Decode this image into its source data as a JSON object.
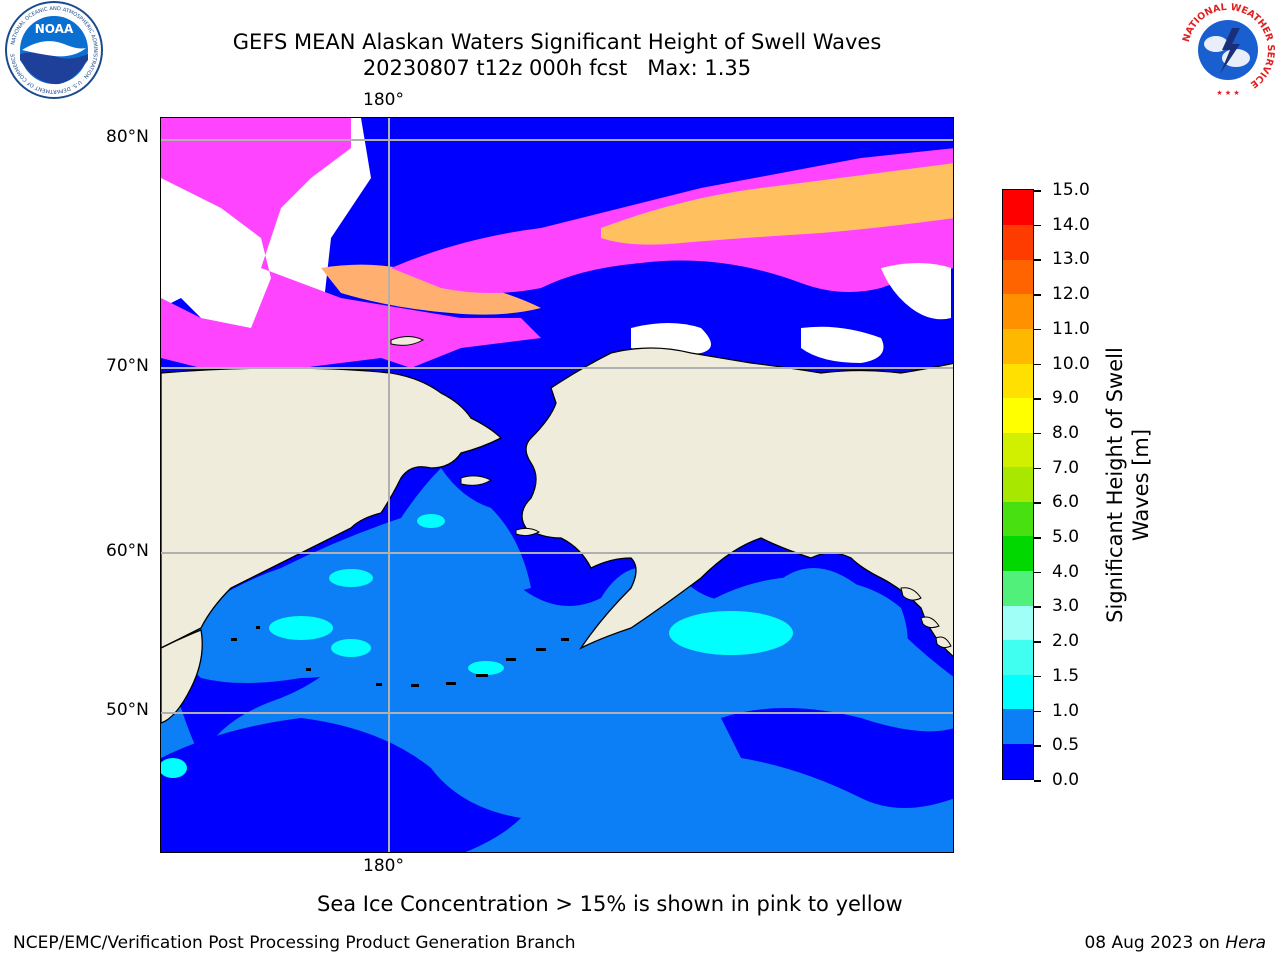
{
  "header": {
    "title_line1": "GEFS MEAN Alaskan Waters Significant Height of Swell Waves",
    "title_line2": "20230807 t12z 000h fcst   Max: 1.35"
  },
  "logos": {
    "noaa_text": "NOAA",
    "noaa_ring_text": "NATIONAL OCEANIC AND ATMOSPHERIC ADMINISTRATION · U.S. DEPARTMENT OF COMMERCE",
    "nws_ring_text": "NATIONAL WEATHER SERVICE"
  },
  "map": {
    "lon_label_top": "180°",
    "lon_label_bottom": "180°",
    "lat_labels": [
      "80°N",
      "70°N",
      "60°N",
      "50°N"
    ]
  },
  "colorbar": {
    "title_line1": "Significant Height of Swell",
    "title_line2": "Waves [m]",
    "tick_labels": [
      "15.0",
      "14.0",
      "13.0",
      "12.0",
      "11.0",
      "10.0",
      "9.0",
      "8.0",
      "7.0",
      "6.0",
      "5.0",
      "4.0",
      "3.0",
      "2.0",
      "1.5",
      "1.0",
      "0.5",
      "0.0"
    ],
    "colors_bottom_to_top": [
      "#0000ff",
      "#0c7ef6",
      "#00ffff",
      "#40fff0",
      "#a0fff6",
      "#50f07a",
      "#00d800",
      "#48e010",
      "#a8e800",
      "#d0f000",
      "#ffff00",
      "#ffe000",
      "#ffb800",
      "#ff9000",
      "#ff6400",
      "#ff3c00",
      "#ff0000"
    ]
  },
  "colors": {
    "land": "#efecdc",
    "sea_ice_pink": "#ff44ff",
    "sea_ice_orange": "#ffc060",
    "swell_low": "#0000ff",
    "swell_mid": "#0c7ef6",
    "swell_high": "#00ffff"
  },
  "footer": {
    "note": "Sea Ice Concentration > 15% is shown in pink to yellow",
    "credit": "NCEP/EMC/Verification Post Processing Product Generation Branch",
    "date": "08 Aug 2023 on ",
    "host": "Hera"
  }
}
